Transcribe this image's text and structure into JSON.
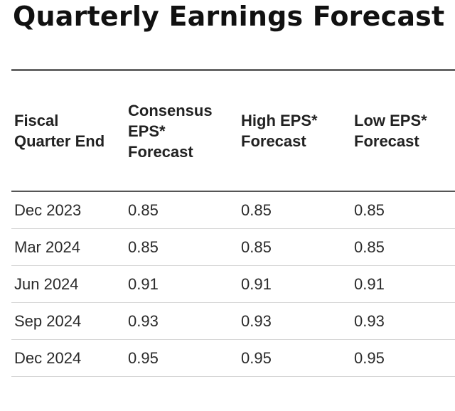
{
  "title": "Quarterly Earnings Forecast",
  "table": {
    "headers": [
      "Fiscal Quarter End",
      "Consensus EPS* Forecast",
      "High EPS* Forecast",
      "Low EPS* Forecast"
    ],
    "rows": [
      [
        "Dec 2023",
        "0.85",
        "0.85",
        "0.85"
      ],
      [
        "Mar 2024",
        "0.85",
        "0.85",
        "0.85"
      ],
      [
        "Jun 2024",
        "0.91",
        "0.91",
        "0.91"
      ],
      [
        "Sep 2024",
        "0.93",
        "0.93",
        "0.93"
      ],
      [
        "Dec 2024",
        "0.95",
        "0.95",
        "0.95"
      ]
    ]
  }
}
